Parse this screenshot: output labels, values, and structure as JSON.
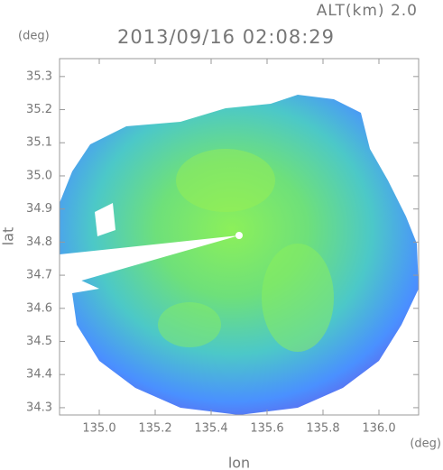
{
  "chart_data": {
    "type": "map",
    "title": "2013/09/16 02:08:29",
    "subtitle": "ALT(km) 2.0",
    "y_unit": "(deg)",
    "x_unit": "(deg)",
    "xlabel": "lon",
    "ylabel": "lat",
    "xlim": [
      134.858,
      136.142
    ],
    "ylim": [
      34.278,
      35.354
    ],
    "xticks": [
      {
        "value": 135.0,
        "label": "135.0"
      },
      135.2,
      135.4,
      135.6,
      135.8,
      {
        "value": 136.0,
        "label": "136.0"
      }
    ],
    "yticks": [
      {
        "value": 34.3,
        "label": "34.3"
      },
      34.4,
      34.5,
      34.6,
      34.7,
      34.8,
      34.9,
      {
        "value": 35.0,
        "label": "35.0"
      },
      35.1,
      35.2,
      35.3
    ]
  }
}
